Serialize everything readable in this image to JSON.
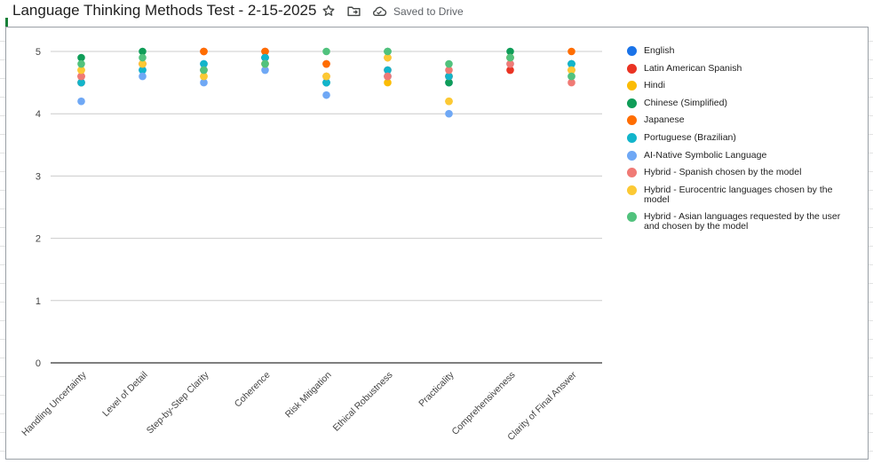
{
  "document": {
    "title": "Language Thinking Methods Test - 2-15-2025",
    "save_status": "Saved to Drive",
    "icons": [
      "star-icon",
      "move-to-folder-icon",
      "cloud-saved-icon"
    ]
  },
  "chart_data": {
    "type": "scatter",
    "title": "",
    "xlabel": "",
    "ylabel": "",
    "ylim": [
      0,
      5
    ],
    "yticks": [
      "0",
      "1",
      "2",
      "3",
      "4",
      "5"
    ],
    "grid": true,
    "legend_position": "right",
    "categories": [
      "Handling Uncertainty",
      "Level of Detail",
      "Step-by-Step Clarity",
      "Coherence",
      "Risk Mitigation",
      "Ethical Robustness",
      "Practicality",
      "Comprehensiveness",
      "Clarity of Final Answer"
    ],
    "series": [
      {
        "name": "English",
        "color": "#1a73e8",
        "values": [
          4.5,
          4.7,
          4.8,
          4.9,
          4.5,
          4.6,
          4.5,
          4.9,
          4.8
        ]
      },
      {
        "name": "Latin American Spanish",
        "color": "#ea3323",
        "values": [
          4.6,
          4.8,
          5.0,
          5.0,
          4.8,
          4.7,
          4.6,
          4.7,
          4.7
        ]
      },
      {
        "name": "Hindi",
        "color": "#fbbc04",
        "values": [
          4.7,
          4.8,
          4.6,
          4.8,
          4.6,
          4.5,
          4.2,
          4.9,
          4.7
        ]
      },
      {
        "name": "Chinese (Simplified)",
        "color": "#0f9d58",
        "values": [
          4.9,
          5.0,
          4.7,
          4.9,
          4.5,
          5.0,
          4.5,
          5.0,
          4.8
        ]
      },
      {
        "name": "Japanese",
        "color": "#ff6d01",
        "values": [
          4.5,
          4.8,
          5.0,
          5.0,
          4.8,
          4.9,
          4.6,
          4.9,
          5.0
        ]
      },
      {
        "name": "Portuguese (Brazilian)",
        "color": "#12b5cb",
        "values": [
          4.5,
          4.7,
          4.8,
          4.9,
          4.5,
          4.7,
          4.6,
          4.9,
          4.8
        ]
      },
      {
        "name": "AI-Native Symbolic Language",
        "color": "#6fa8f5",
        "values": [
          4.2,
          4.6,
          4.5,
          4.7,
          4.3,
          4.6,
          4.0,
          4.8,
          4.6
        ]
      },
      {
        "name": "Hybrid - Spanish chosen by the model",
        "color": "#f07a75",
        "values": [
          4.6,
          4.8,
          4.7,
          4.8,
          4.6,
          4.6,
          4.7,
          4.8,
          4.5
        ]
      },
      {
        "name": "Hybrid - Eurocentric languages chosen by the model",
        "color": "#fcc934",
        "values": [
          4.7,
          4.8,
          4.6,
          4.8,
          4.6,
          4.9,
          4.2,
          4.9,
          4.7
        ]
      },
      {
        "name": "Hybrid - Asian languages requested by the user and chosen by the model",
        "color": "#51c27d",
        "values": [
          4.8,
          4.9,
          4.7,
          4.8,
          5.0,
          5.0,
          4.8,
          4.9,
          4.6
        ]
      }
    ]
  }
}
